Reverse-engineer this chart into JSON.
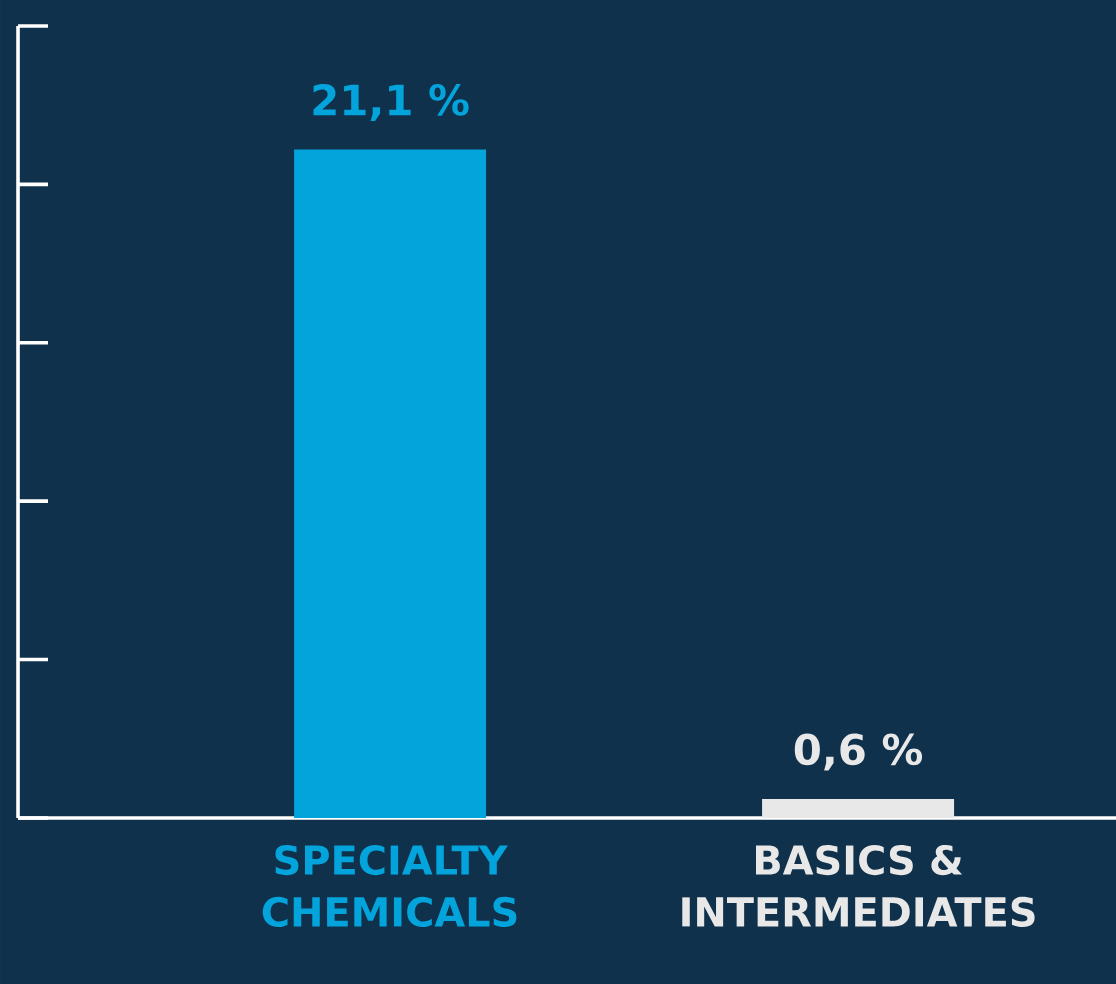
{
  "chart_data": {
    "type": "bar",
    "categories": [
      "SPECIALTY CHEMICALS",
      "BASICS & INTERMEDIATES"
    ],
    "values": [
      21.1,
      0.6
    ],
    "colors": [
      "#03a3dc",
      "#e8e8e8"
    ],
    "value_labels": [
      "21,1 %",
      "0,6 %"
    ],
    "ylim": [
      0,
      25
    ],
    "yticks": [
      {
        "value": 0,
        "label": null
      },
      {
        "value": 5,
        "label": null
      },
      {
        "value": 10,
        "label": null
      },
      {
        "value": 15,
        "label": null
      },
      {
        "value": 20,
        "label": null
      },
      {
        "value": 25,
        "label": null
      }
    ],
    "tick_labels": "x"
  }
}
